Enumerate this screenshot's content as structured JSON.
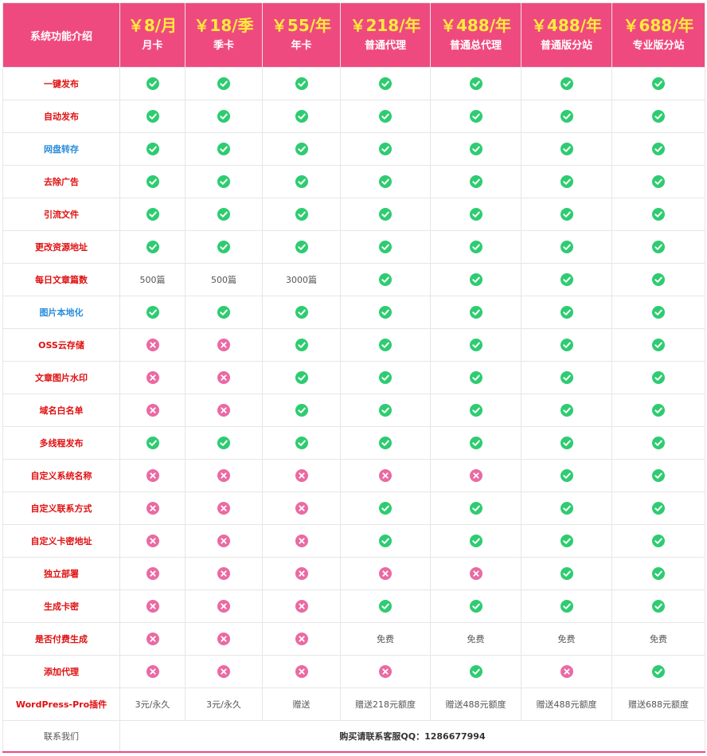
{
  "colors": {
    "header_bg": "#ef4a7f",
    "price": "#ffeb3b",
    "check": "#2ecc71",
    "cross": "#ea6aa3",
    "feature_red": "#e01010",
    "feature_blue": "#2a8ddc"
  },
  "header": {
    "corner": "系统功能介绍",
    "plans": [
      {
        "price": "￥8/月",
        "name": "月卡"
      },
      {
        "price": "￥18/季",
        "name": "季卡"
      },
      {
        "price": "￥55/年",
        "name": "年卡"
      },
      {
        "price": "￥218/年",
        "name": "普通代理"
      },
      {
        "price": "￥488/年",
        "name": "普通总代理"
      },
      {
        "price": "￥488/年",
        "name": "普通版分站"
      },
      {
        "price": "￥688/年",
        "name": "专业版分站"
      }
    ]
  },
  "rows": [
    {
      "feature": "一键发布",
      "color": "red",
      "cells": [
        "check",
        "check",
        "check",
        "check",
        "check",
        "check",
        "check"
      ]
    },
    {
      "feature": "自动发布",
      "color": "red",
      "cells": [
        "check",
        "check",
        "check",
        "check",
        "check",
        "check",
        "check"
      ]
    },
    {
      "feature": "网盘转存",
      "color": "blue",
      "cells": [
        "check",
        "check",
        "check",
        "check",
        "check",
        "check",
        "check"
      ]
    },
    {
      "feature": "去除广告",
      "color": "red",
      "cells": [
        "check",
        "check",
        "check",
        "check",
        "check",
        "check",
        "check"
      ]
    },
    {
      "feature": "引流文件",
      "color": "red",
      "cells": [
        "check",
        "check",
        "check",
        "check",
        "check",
        "check",
        "check"
      ]
    },
    {
      "feature": "更改资源地址",
      "color": "red",
      "cells": [
        "check",
        "check",
        "check",
        "check",
        "check",
        "check",
        "check"
      ]
    },
    {
      "feature": "每日文章篇数",
      "color": "red",
      "cells": [
        "500篇",
        "500篇",
        "3000篇",
        "check",
        "check",
        "check",
        "check"
      ]
    },
    {
      "feature": "图片本地化",
      "color": "blue",
      "cells": [
        "check",
        "check",
        "check",
        "check",
        "check",
        "check",
        "check"
      ]
    },
    {
      "feature": "OSS云存储",
      "color": "red",
      "cells": [
        "cross",
        "cross",
        "check",
        "check",
        "check",
        "check",
        "check"
      ]
    },
    {
      "feature": "文章图片水印",
      "color": "red",
      "cells": [
        "cross",
        "cross",
        "check",
        "check",
        "check",
        "check",
        "check"
      ]
    },
    {
      "feature": "域名白名单",
      "color": "red",
      "cells": [
        "cross",
        "cross",
        "check",
        "check",
        "check",
        "check",
        "check"
      ]
    },
    {
      "feature": "多线程发布",
      "color": "red",
      "cells": [
        "check",
        "check",
        "check",
        "check",
        "check",
        "check",
        "check"
      ]
    },
    {
      "feature": "自定义系统名称",
      "color": "red",
      "cells": [
        "cross",
        "cross",
        "cross",
        "cross",
        "cross",
        "check",
        "check"
      ]
    },
    {
      "feature": "自定义联系方式",
      "color": "red",
      "cells": [
        "cross",
        "cross",
        "cross",
        "check",
        "check",
        "check",
        "check"
      ]
    },
    {
      "feature": "自定义卡密地址",
      "color": "red",
      "cells": [
        "cross",
        "cross",
        "cross",
        "check",
        "check",
        "check",
        "check"
      ]
    },
    {
      "feature": "独立部署",
      "color": "red",
      "cells": [
        "cross",
        "cross",
        "cross",
        "cross",
        "cross",
        "check",
        "check"
      ]
    },
    {
      "feature": "生成卡密",
      "color": "red",
      "cells": [
        "cross",
        "cross",
        "cross",
        "check",
        "check",
        "check",
        "check"
      ]
    },
    {
      "feature": "是否付费生成",
      "color": "red",
      "cells": [
        "cross",
        "cross",
        "cross",
        "免费",
        "免费",
        "免费",
        "免费"
      ]
    },
    {
      "feature": "添加代理",
      "color": "red",
      "cells": [
        "cross",
        "cross",
        "cross",
        "cross",
        "check",
        "cross",
        "check"
      ]
    },
    {
      "feature": "WordPress-Pro插件",
      "color": "red",
      "cells": [
        "3元/永久",
        "3元/永久",
        "赠送",
        "赠送218元额度",
        "赠送488元额度",
        "赠送488元额度",
        "赠送688元额度"
      ]
    }
  ],
  "footer": {
    "label": "联系我们",
    "contact": "购买请联系客服QQ：1286677994"
  }
}
